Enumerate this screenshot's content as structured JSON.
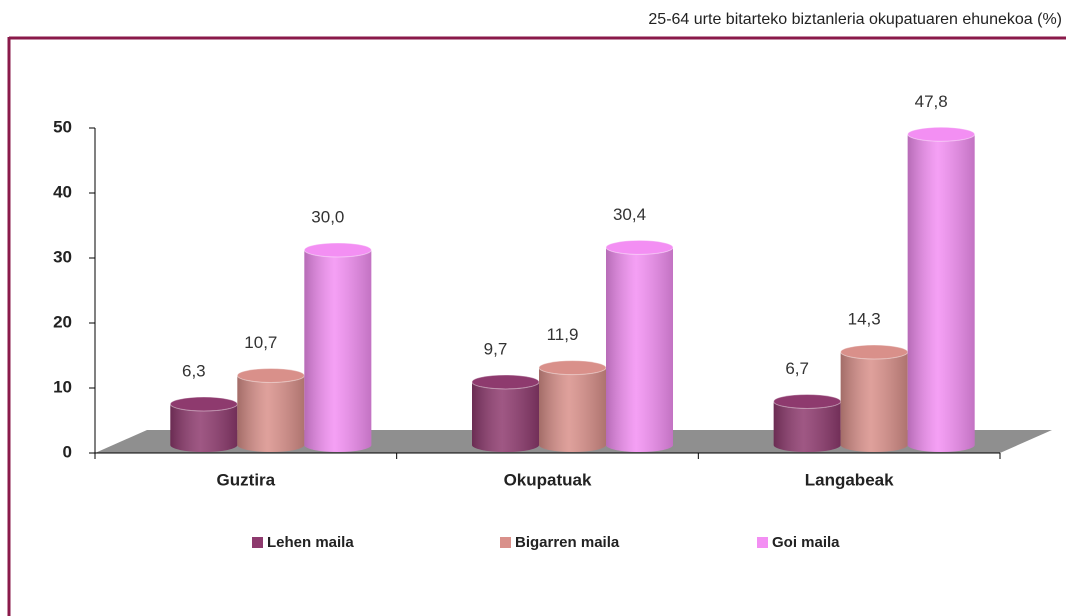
{
  "chart_data": {
    "type": "bar3d",
    "subtitle": "25-64 urte bitarteko biztanleria okupatuaren ehunekoa (%)",
    "categories": [
      "Guztira",
      "Okupatuak",
      "Langabeak"
    ],
    "series": [
      {
        "name": "Lehen maila",
        "color": "#8e3a6e",
        "values": [
          6.3,
          9.7,
          6.7
        ],
        "value_labels": [
          "6,3",
          "9,7",
          "6,7"
        ]
      },
      {
        "name": "Bigarren maila",
        "color": "#d9908a",
        "values": [
          10.7,
          11.9,
          14.3
        ],
        "value_labels": [
          "10,7",
          "11,9",
          "14,3"
        ]
      },
      {
        "name": "Goi maila",
        "color": "#f38ff3",
        "values": [
          30.0,
          30.4,
          47.8
        ],
        "value_labels": [
          "30,0",
          "30,4",
          "47,8"
        ]
      }
    ],
    "ylim": [
      0,
      50
    ],
    "yticks": [
      0,
      10,
      20,
      30,
      40,
      50
    ],
    "legend": "bottom"
  }
}
